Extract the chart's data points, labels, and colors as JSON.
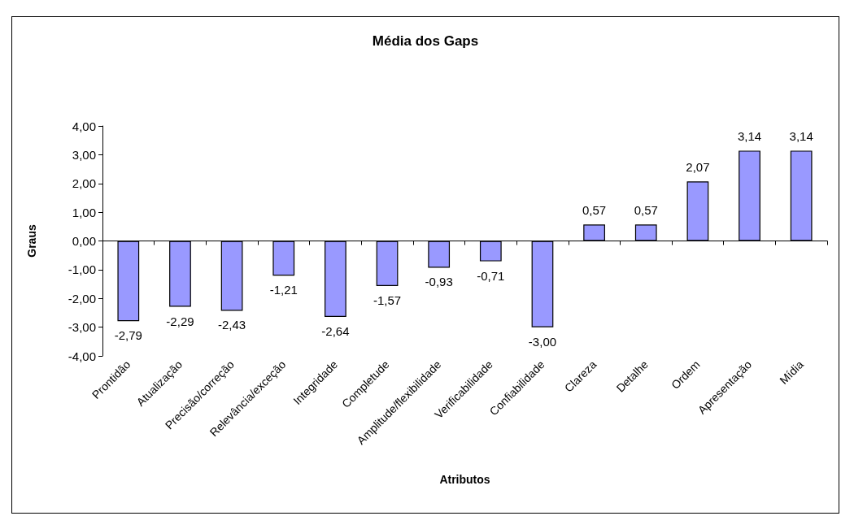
{
  "chart_data": {
    "type": "bar",
    "title": "Média dos Gaps",
    "xlabel": "Atributos",
    "ylabel": "Graus",
    "categories": [
      "Prontidão",
      "Atualização",
      "Precisão/correção",
      "Relevância/exceção",
      "Integridade",
      "Completude",
      "Amplitude/flexibilidade",
      "Verificabilidade",
      "Confiabilidade",
      "Clareza",
      "Detalhe",
      "Ordem",
      "Apresentação",
      "Mídia"
    ],
    "values": [
      -2.79,
      -2.29,
      -2.43,
      -1.21,
      -2.64,
      -1.57,
      -0.93,
      -0.71,
      -3.0,
      0.57,
      0.57,
      2.07,
      3.14,
      3.14
    ],
    "value_labels": [
      "-2,79",
      "-2,29",
      "-2,43",
      "-1,21",
      "-2,64",
      "-1,57",
      "-0,93",
      "-0,71",
      "-3,00",
      "0,57",
      "0,57",
      "2,07",
      "3,14",
      "3,14"
    ],
    "color": "#9999ff",
    "ylim": [
      -4,
      4
    ],
    "yticks": [
      {
        "value": -4,
        "label": "-4,00"
      },
      {
        "value": -3,
        "label": "-3,00"
      },
      {
        "value": -2,
        "label": "-2,00"
      },
      {
        "value": -1,
        "label": "-1,00"
      },
      {
        "value": 0,
        "label": "0,00"
      },
      {
        "value": 1,
        "label": "1,00"
      },
      {
        "value": 2,
        "label": "2,00"
      },
      {
        "value": 3,
        "label": "3,00"
      },
      {
        "value": 4,
        "label": "4,00"
      }
    ]
  }
}
